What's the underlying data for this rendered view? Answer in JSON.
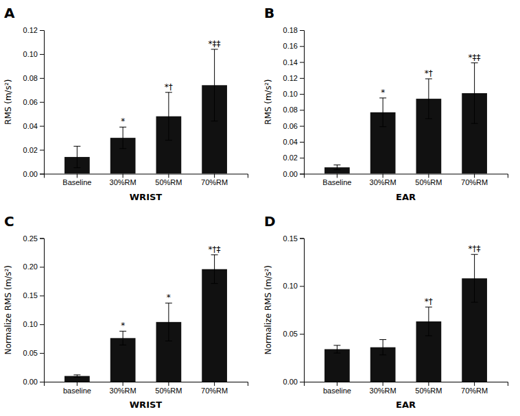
{
  "chart_data": [
    {
      "type": "bar",
      "title": "A",
      "xlabel": "WRIST",
      "ylabel": "RMS (m/s²)",
      "categories": [
        "Baseline",
        "30%RM",
        "50%RM",
        "70%RM"
      ],
      "values": [
        0.014,
        0.03,
        0.048,
        0.074
      ],
      "errors": [
        0.009,
        0.009,
        0.02,
        0.03
      ],
      "annotations": [
        null,
        "*",
        "*†",
        "*‡‡"
      ],
      "color": "#111111",
      "ylim": [
        0,
        0.12
      ],
      "yticks": [
        {
          "value": 0,
          "label": "0.00"
        },
        0.02,
        0.04,
        0.06,
        0.08,
        {
          "value": 0.1,
          "label": "0.10"
        },
        0.12
      ],
      "grid": false
    },
    {
      "type": "bar",
      "title": "B",
      "xlabel": "EAR",
      "ylabel": "RMS (m/s²)",
      "categories": [
        "Baseline",
        "30%RM",
        "50%RM",
        "70%RM"
      ],
      "values": [
        0.008,
        0.077,
        0.094,
        0.101
      ],
      "errors": [
        0.003,
        0.018,
        0.025,
        0.038
      ],
      "annotations": [
        null,
        "*",
        "*†",
        "*‡‡"
      ],
      "color": "#111111",
      "ylim": [
        0,
        0.18
      ],
      "yticks": [
        {
          "value": 0,
          "label": "0.00"
        },
        0.02,
        0.04,
        0.06,
        0.08,
        {
          "value": 0.1,
          "label": "0.10"
        },
        0.12,
        0.14,
        0.16,
        0.18
      ],
      "grid": false
    },
    {
      "type": "bar",
      "title": "C",
      "xlabel": "WRIST",
      "ylabel": "Normalize RMS (m/s²)",
      "categories": [
        "baseline",
        "30%RM",
        "50%RM",
        "70%RM"
      ],
      "values": [
        0.01,
        0.076,
        0.104,
        0.196
      ],
      "errors": [
        0.002,
        0.012,
        0.033,
        0.025
      ],
      "annotations": [
        null,
        "*",
        "*",
        "*†‡"
      ],
      "color": "#111111",
      "ylim": [
        0,
        0.25
      ],
      "yticks": [
        {
          "value": 0,
          "label": "0.00"
        },
        0.05,
        {
          "value": 0.1,
          "label": "0.10"
        },
        0.15,
        {
          "value": 0.2,
          "label": "0.20"
        },
        0.25
      ],
      "grid": false
    },
    {
      "type": "bar",
      "title": "D",
      "xlabel": "EAR",
      "ylabel": "Normalize RMS (m/s²)",
      "categories": [
        "baseline",
        "30%RM",
        "50%RM",
        "70%RM"
      ],
      "values": [
        0.034,
        0.036,
        0.063,
        0.108
      ],
      "errors": [
        0.004,
        0.008,
        0.015,
        0.025
      ],
      "annotations": [
        null,
        null,
        "*†",
        "*†‡"
      ],
      "color": "#111111",
      "ylim": [
        0,
        0.15
      ],
      "yticks": [
        {
          "value": 0,
          "label": "0.00"
        },
        0.05,
        {
          "value": 0.1,
          "label": "0.10"
        },
        0.15
      ],
      "grid": false
    }
  ]
}
